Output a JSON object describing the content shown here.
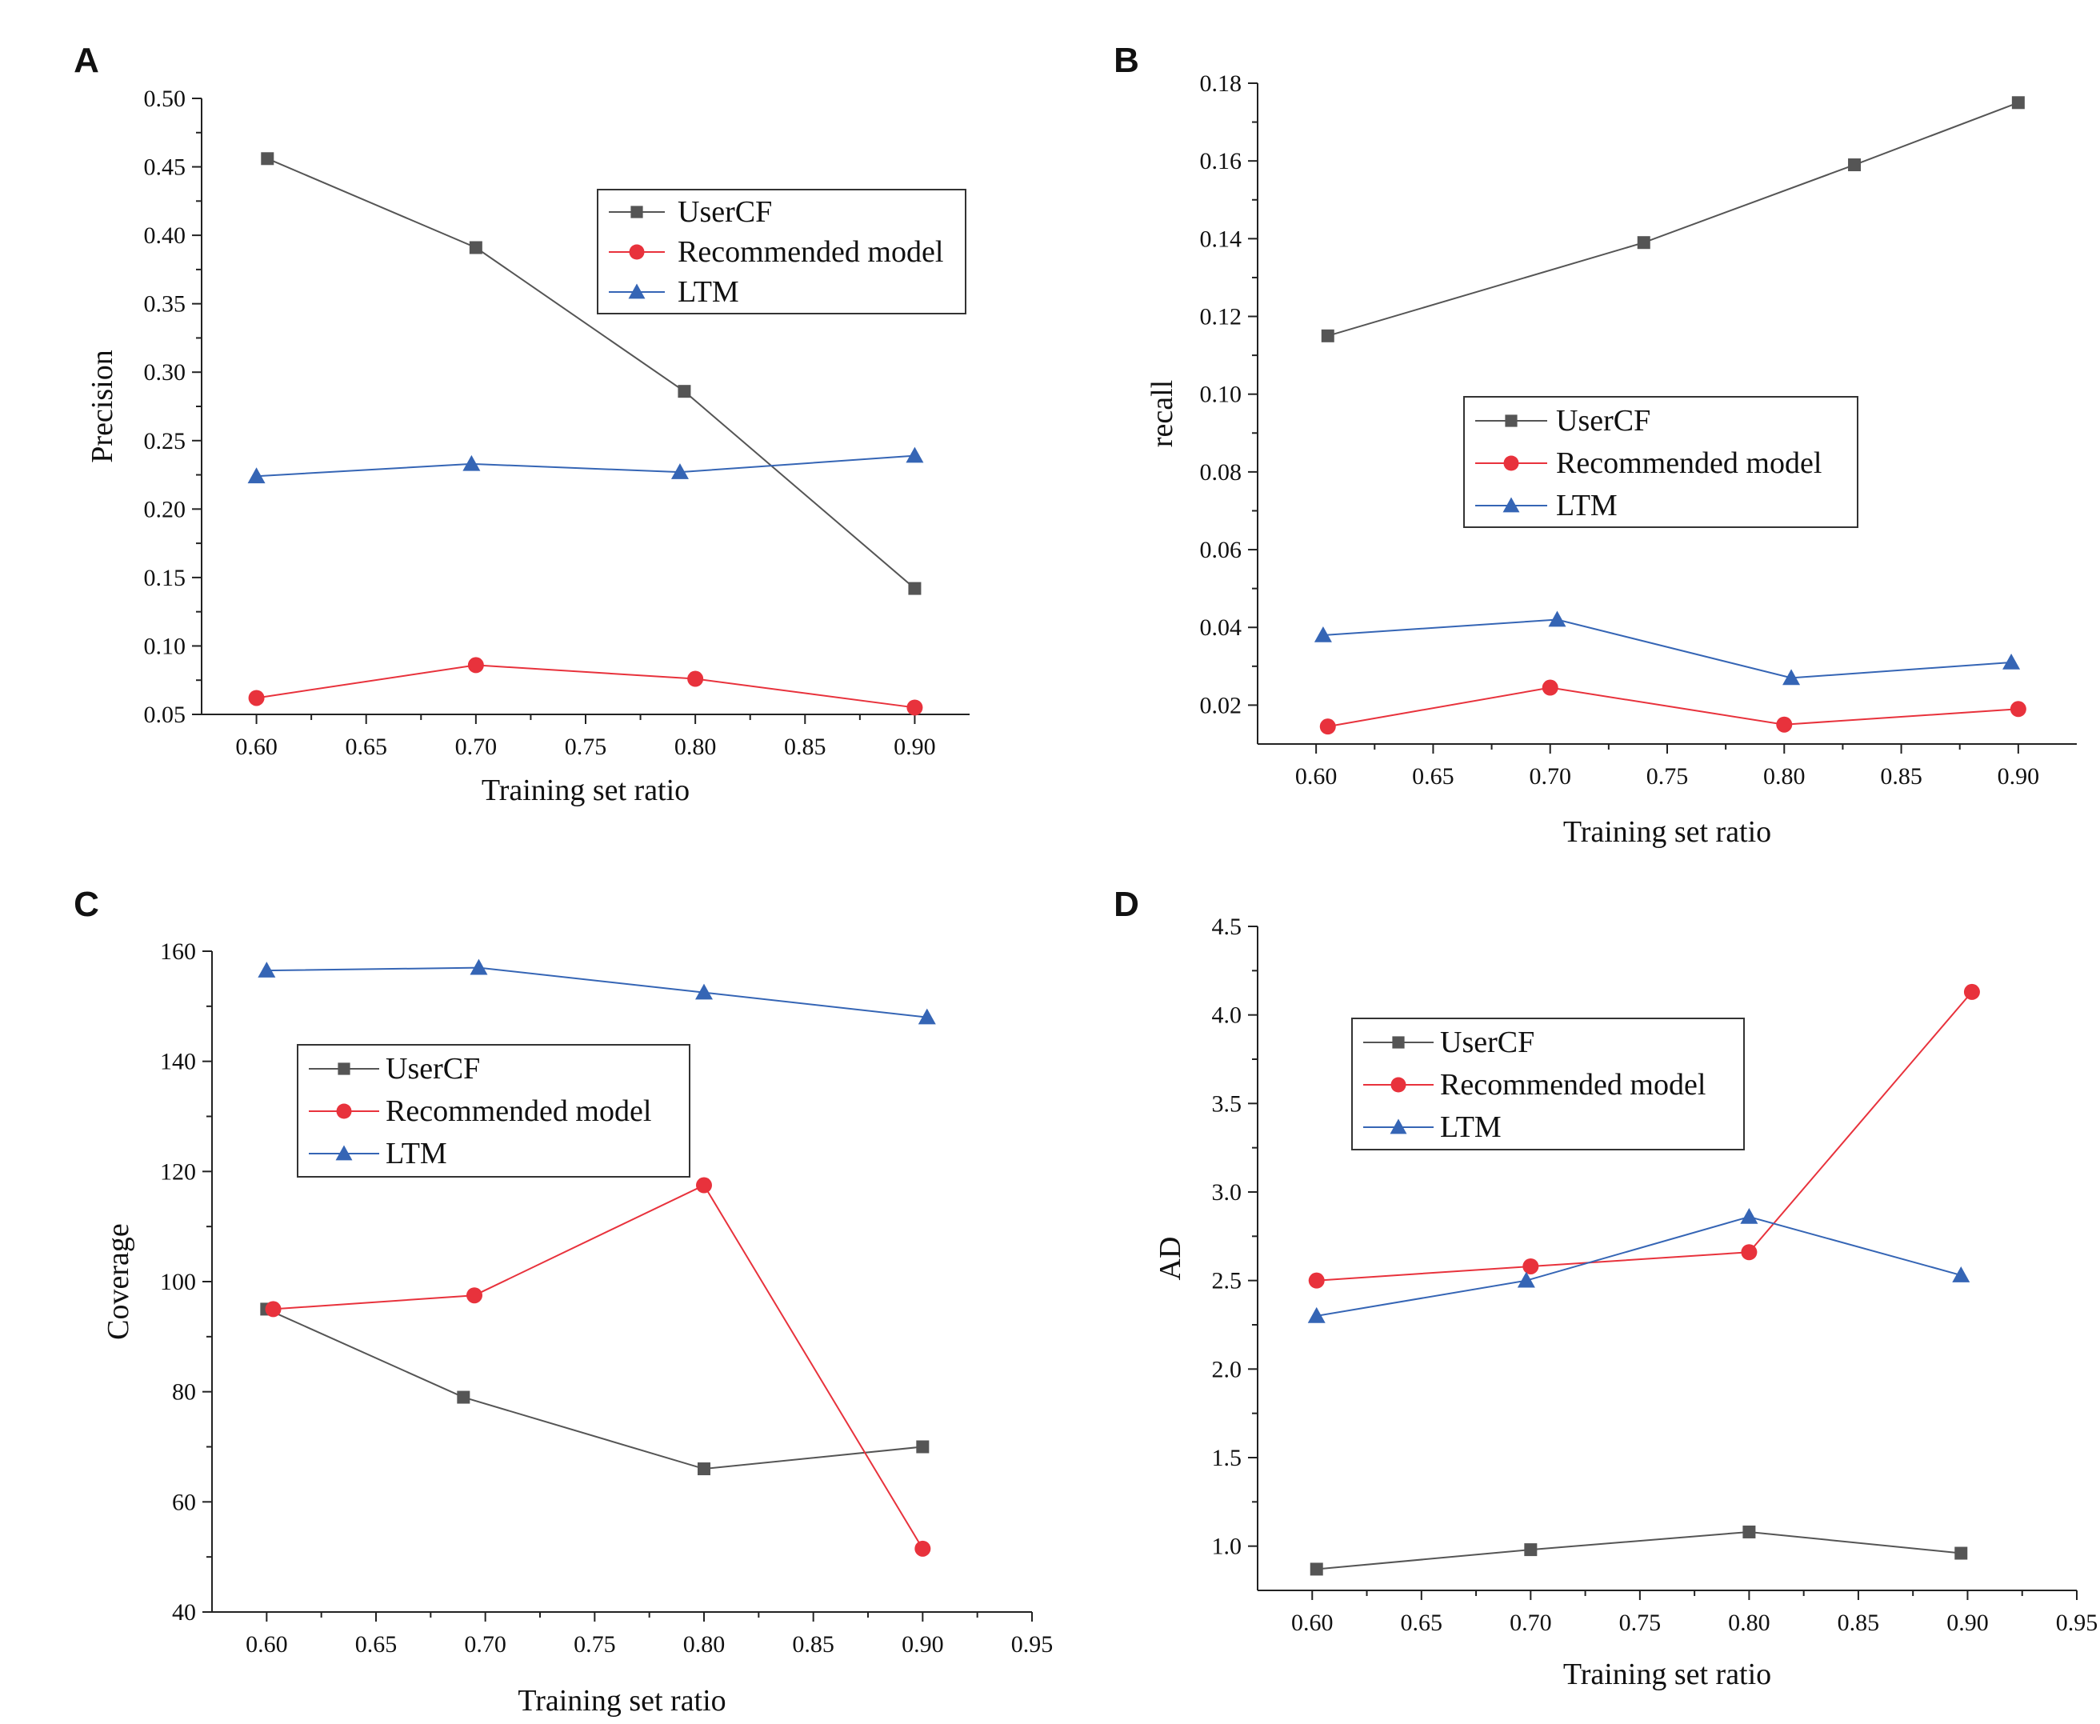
{
  "figure": {
    "colors": {
      "UserCF": "#555555",
      "Recommended model": "#e8323c",
      "LTM": "#3565b5"
    },
    "markers": {
      "UserCF": "square",
      "Recommended model": "circle",
      "LTM": "triangle"
    }
  },
  "chart_data": [
    {
      "panel": "A",
      "type": "line",
      "xlabel": "Training set ratio",
      "ylabel": "Precision",
      "xlim": [
        0.575,
        0.925
      ],
      "ylim": [
        0.05,
        0.5
      ],
      "xticks": [
        0.6,
        0.65,
        0.7,
        0.75,
        0.8,
        0.85,
        0.9
      ],
      "xtick_labels": [
        "0.60",
        "0.65",
        "0.70",
        "0.75",
        "0.80",
        "0.85",
        "0.90"
      ],
      "yticks": [
        0.05,
        0.1,
        0.15,
        0.2,
        0.25,
        0.3,
        0.35,
        0.4,
        0.45,
        0.5
      ],
      "ytick_labels": [
        "0.05",
        "0.10",
        "0.15",
        "0.20",
        "0.25",
        "0.30",
        "0.35",
        "0.40",
        "0.45",
        "0.50"
      ],
      "legend_position": "top-right",
      "series": [
        {
          "name": "UserCF",
          "x": [
            0.605,
            0.7,
            0.795,
            0.9
          ],
          "y": [
            0.456,
            0.391,
            0.286,
            0.142
          ]
        },
        {
          "name": "Recommended model",
          "x": [
            0.6,
            0.7,
            0.8,
            0.9
          ],
          "y": [
            0.062,
            0.086,
            0.076,
            0.055
          ]
        },
        {
          "name": "LTM",
          "x": [
            0.6,
            0.698,
            0.793,
            0.9
          ],
          "y": [
            0.224,
            0.233,
            0.227,
            0.239
          ]
        }
      ]
    },
    {
      "panel": "B",
      "type": "line",
      "xlabel": "Training set ratio",
      "ylabel": "recall",
      "xlim": [
        0.575,
        0.925
      ],
      "ylim": [
        0.01,
        0.18
      ],
      "xticks": [
        0.6,
        0.65,
        0.7,
        0.75,
        0.8,
        0.85,
        0.9
      ],
      "xtick_labels": [
        "0.60",
        "0.65",
        "0.70",
        "0.75",
        "0.80",
        "0.85",
        "0.90"
      ],
      "yticks": [
        0.02,
        0.04,
        0.06,
        0.08,
        0.1,
        0.12,
        0.14,
        0.16,
        0.18
      ],
      "ytick_labels": [
        "0.02",
        "0.04",
        "0.06",
        "0.08",
        "0.10",
        "0.12",
        "0.14",
        "0.16",
        "0.18"
      ],
      "legend_position": "center",
      "series": [
        {
          "name": "UserCF",
          "x": [
            0.605,
            0.74,
            0.83,
            0.9
          ],
          "y": [
            0.115,
            0.139,
            0.159,
            0.175
          ]
        },
        {
          "name": "Recommended model",
          "x": [
            0.605,
            0.7,
            0.8,
            0.9
          ],
          "y": [
            0.0145,
            0.0245,
            0.015,
            0.019
          ]
        },
        {
          "name": "LTM",
          "x": [
            0.603,
            0.703,
            0.803,
            0.897
          ],
          "y": [
            0.038,
            0.042,
            0.027,
            0.031
          ]
        }
      ]
    },
    {
      "panel": "C",
      "type": "line",
      "xlabel": "Training set ratio",
      "ylabel": "Coverage",
      "xlim": [
        0.575,
        0.95
      ],
      "ylim": [
        40,
        160
      ],
      "xticks": [
        0.6,
        0.65,
        0.7,
        0.75,
        0.8,
        0.85,
        0.9,
        0.95
      ],
      "xtick_labels": [
        "0.60",
        "0.65",
        "0.70",
        "0.75",
        "0.80",
        "0.85",
        "0.90",
        "0.95"
      ],
      "yticks": [
        40,
        60,
        80,
        100,
        120,
        140,
        160
      ],
      "ytick_labels": [
        "40",
        "60",
        "80",
        "100",
        "120",
        "140",
        "160"
      ],
      "legend_position": "top-left",
      "series": [
        {
          "name": "UserCF",
          "x": [
            0.6,
            0.69,
            0.8,
            0.9
          ],
          "y": [
            95,
            79,
            66,
            70
          ]
        },
        {
          "name": "Recommended model",
          "x": [
            0.603,
            0.695,
            0.8,
            0.9
          ],
          "y": [
            95,
            97.5,
            117.5,
            51.5
          ]
        },
        {
          "name": "LTM",
          "x": [
            0.6,
            0.697,
            0.8,
            0.902
          ],
          "y": [
            156.5,
            157,
            152.5,
            148
          ]
        }
      ]
    },
    {
      "panel": "D",
      "type": "line",
      "xlabel": "Training set ratio",
      "ylabel": "AD",
      "xlim": [
        0.575,
        0.95
      ],
      "ylim": [
        0.75,
        4.5
      ],
      "xticks": [
        0.6,
        0.65,
        0.7,
        0.75,
        0.8,
        0.85,
        0.9,
        0.95
      ],
      "xtick_labels": [
        "0.60",
        "0.65",
        "0.70",
        "0.75",
        "0.80",
        "0.85",
        "0.90",
        "0.95"
      ],
      "yticks": [
        1.0,
        1.5,
        2.0,
        2.5,
        3.0,
        3.5,
        4.0,
        4.5
      ],
      "ytick_labels": [
        "1.0",
        "1.5",
        "2.0",
        "2.5",
        "3.0",
        "3.5",
        "4.0",
        "4.5"
      ],
      "legend_position": "top-left",
      "series": [
        {
          "name": "UserCF",
          "x": [
            0.602,
            0.7,
            0.8,
            0.897
          ],
          "y": [
            0.87,
            0.98,
            1.08,
            0.96
          ]
        },
        {
          "name": "Recommended model",
          "x": [
            0.602,
            0.7,
            0.8,
            0.902
          ],
          "y": [
            2.5,
            2.58,
            2.66,
            4.13
          ]
        },
        {
          "name": "LTM",
          "x": [
            0.602,
            0.698,
            0.8,
            0.897
          ],
          "y": [
            2.3,
            2.5,
            2.86,
            2.53
          ]
        }
      ]
    }
  ]
}
